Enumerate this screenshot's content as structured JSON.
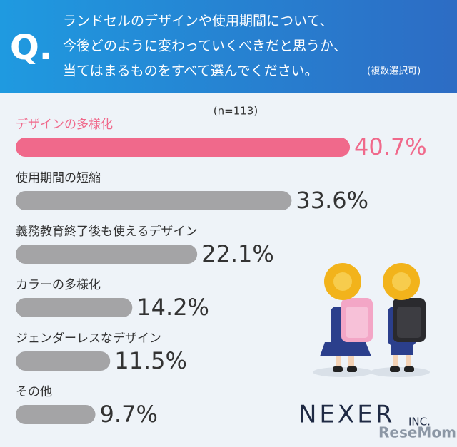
{
  "chart_data": {
    "type": "bar",
    "title_prefix": "Q.",
    "title_lines": [
      "ランドセルのデザインや使用期間について、",
      "今後どのように変わっていくべきだと思うか、",
      "当てはまるものをすべて選んでください。"
    ],
    "title_note": "(複数選択可)",
    "subtitle": "(n=113)",
    "categories": [
      "デザインの多様化",
      "使用期間の短縮",
      "義務教育終了後も使えるデザイン",
      "カラーの多様化",
      "ジェンダーレスなデザイン",
      "その他"
    ],
    "values": [
      40.7,
      33.6,
      22.1,
      14.2,
      11.5,
      9.7
    ],
    "value_labels": [
      "40.7%",
      "33.6%",
      "22.1%",
      "14.2%",
      "11.5%",
      "9.7%"
    ],
    "colors": [
      "#f0698b",
      "#a4a4a6",
      "#a4a4a6",
      "#a4a4a6",
      "#a4a4a6",
      "#a4a4a6"
    ],
    "logo": "NEXER",
    "logo_suffix": "INC.",
    "watermark": "ReseMom"
  }
}
